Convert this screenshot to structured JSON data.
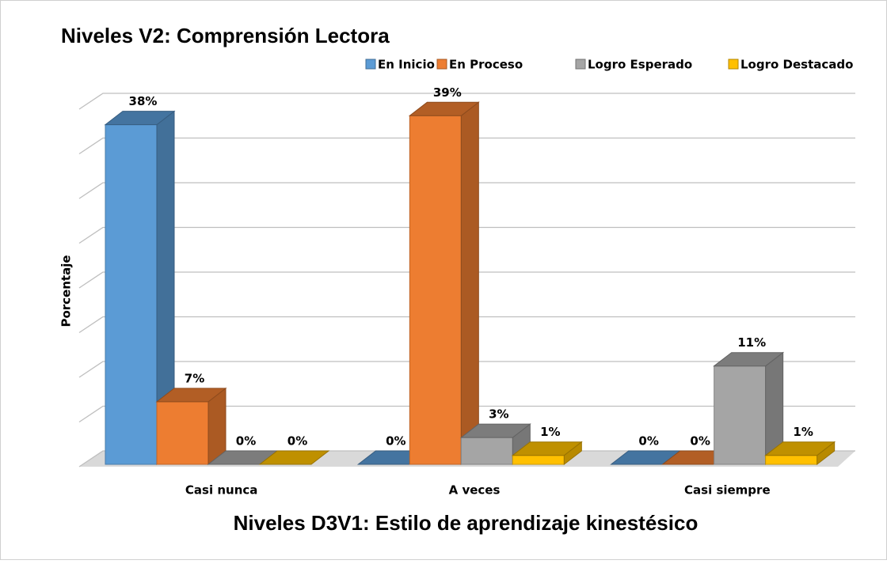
{
  "chart_data": {
    "type": "bar3d",
    "title": "Niveles V2: Comprensión Lectora",
    "xlabel": "Niveles D3V1: Estilo de aprendizaje kinestésico",
    "ylabel": "Porcentaje",
    "categories": [
      "Casi nunca",
      "A veces",
      "Casi siempre"
    ],
    "series": [
      {
        "name": "En Inicio",
        "color": "#5b9bd5",
        "values": [
          38,
          0,
          0
        ],
        "value_labels": [
          "38%",
          "0%",
          "0%"
        ]
      },
      {
        "name": "En Proceso",
        "color": "#ed7d31",
        "values": [
          7,
          39,
          0
        ],
        "value_labels": [
          "7%",
          "39%",
          "0%"
        ]
      },
      {
        "name": "Logro Esperado",
        "color": "#a5a5a5",
        "values": [
          0,
          3,
          11
        ],
        "value_labels": [
          "0%",
          "3%",
          "11%"
        ]
      },
      {
        "name": "Logro Destacado",
        "color": "#ffc000",
        "values": [
          0,
          1,
          1
        ],
        "value_labels": [
          "0%",
          "1%",
          "1%"
        ]
      }
    ],
    "ylim": [
      0,
      40
    ],
    "yticks": [
      0,
      5,
      10,
      15,
      20,
      25,
      30,
      35,
      40
    ],
    "grid": true,
    "legend": "top"
  }
}
